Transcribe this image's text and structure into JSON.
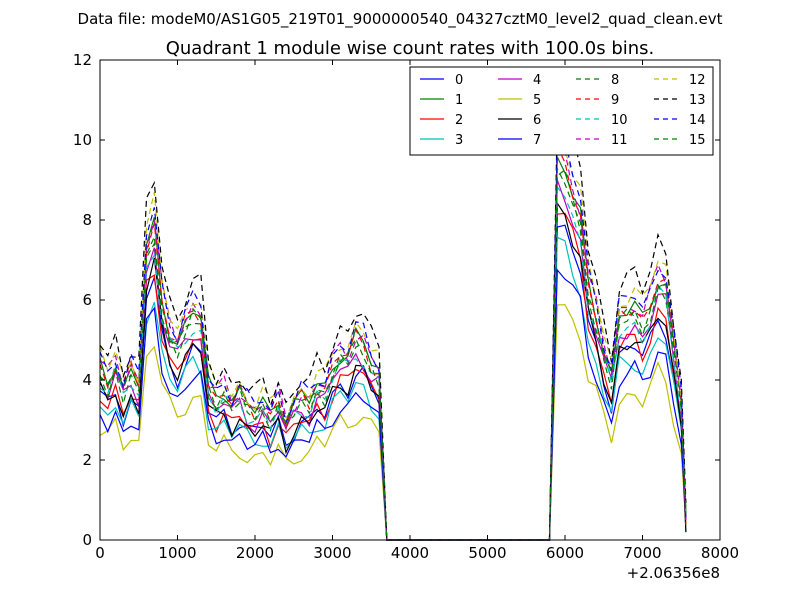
{
  "figure": {
    "suptitle": "Data file: modeM0/AS1G05_219T01_9000000540_04327cztM0_level2_quad_clean.evt"
  },
  "chart_data": {
    "type": "line",
    "title": "Quadrant 1 module wise count rates with 100.0s bins.",
    "xlabel": "",
    "ylabel": "",
    "x_offset_label": "+2.06356e8",
    "xlim": [
      0,
      8000
    ],
    "ylim": [
      0,
      12
    ],
    "xticks": [
      "0",
      "1000",
      "2000",
      "3000",
      "4000",
      "5000",
      "6000",
      "7000",
      "8000"
    ],
    "yticks": [
      "0",
      "2",
      "4",
      "6",
      "8",
      "10",
      "12"
    ],
    "grid": false,
    "legend": {
      "position": "top-right",
      "columns": 4
    },
    "x": [
      0,
      100,
      200,
      300,
      400,
      500,
      600,
      700,
      800,
      900,
      1000,
      1100,
      1200,
      1300,
      1400,
      1500,
      1600,
      1700,
      1800,
      1900,
      2000,
      2100,
      2200,
      2300,
      2400,
      2500,
      2600,
      2700,
      2800,
      2900,
      3000,
      3100,
      3200,
      3300,
      3400,
      3500,
      3600,
      3700,
      3800,
      3900,
      4000,
      4100,
      4200,
      4300,
      4400,
      4500,
      4600,
      4700,
      4800,
      4900,
      5000,
      5100,
      5200,
      5300,
      5400,
      5500,
      5600,
      5700,
      5800,
      5900,
      6000,
      6100,
      6200,
      6300,
      6400,
      6500,
      6600,
      6700,
      6800,
      6900,
      7000,
      7100,
      7200,
      7300,
      7400,
      7500,
      7560
    ],
    "base_profile": [
      3.8,
      3.5,
      3.9,
      3.3,
      3.7,
      3.4,
      6.4,
      6.9,
      5.3,
      4.6,
      4.3,
      4.7,
      5.0,
      4.9,
      3.4,
      3.1,
      3.3,
      3.0,
      3.2,
      2.9,
      2.8,
      3.0,
      2.7,
      3.1,
      2.6,
      2.9,
      3.1,
      3.0,
      3.4,
      3.3,
      3.8,
      4.1,
      4.0,
      4.4,
      4.3,
      3.9,
      3.7,
      0,
      0,
      0,
      0,
      0,
      0,
      0,
      0,
      0,
      0,
      0,
      0,
      0,
      0,
      0,
      0,
      0,
      0,
      0,
      0,
      0,
      0,
      8.4,
      8.2,
      7.6,
      7.1,
      5.6,
      5.0,
      4.2,
      3.6,
      4.9,
      5.0,
      5.1,
      4.8,
      5.2,
      5.8,
      5.6,
      4.3,
      3.0,
      0.5
    ],
    "series": [
      {
        "name": "0",
        "color": "#0000ff",
        "dash": "",
        "scale": 0.95,
        "shift": 0.0
      },
      {
        "name": "1",
        "color": "#008000",
        "dash": "",
        "scale": 1.12,
        "shift": 0.1
      },
      {
        "name": "2",
        "color": "#ff0000",
        "dash": "",
        "scale": 1.0,
        "shift": -0.1
      },
      {
        "name": "3",
        "color": "#00bfbf",
        "dash": "",
        "scale": 0.88,
        "shift": 0.0
      },
      {
        "name": "4",
        "color": "#bf00bf",
        "dash": "",
        "scale": 1.05,
        "shift": 0.0
      },
      {
        "name": "5",
        "color": "#bfbf00",
        "dash": "",
        "scale": 0.72,
        "shift": 0.0
      },
      {
        "name": "6",
        "color": "#000000",
        "dash": "",
        "scale": 1.02,
        "shift": -0.2
      },
      {
        "name": "7",
        "color": "#0000ff",
        "dash": "",
        "scale": 0.82,
        "shift": 0.0
      },
      {
        "name": "8",
        "color": "#008000",
        "dash": "6,4",
        "scale": 1.1,
        "shift": 0.0
      },
      {
        "name": "9",
        "color": "#ff0000",
        "dash": "6,4",
        "scale": 1.14,
        "shift": 0.0
      },
      {
        "name": "10",
        "color": "#00bfbf",
        "dash": "6,4",
        "scale": 1.04,
        "shift": 0.1
      },
      {
        "name": "11",
        "color": "#bf00bf",
        "dash": "6,4",
        "scale": 1.17,
        "shift": 0.0
      },
      {
        "name": "12",
        "color": "#bfbf00",
        "dash": "6,4",
        "scale": 1.22,
        "shift": 0.0
      },
      {
        "name": "13",
        "color": "#000000",
        "dash": "6,4",
        "scale": 1.3,
        "shift": 0.0
      },
      {
        "name": "14",
        "color": "#0000ff",
        "dash": "6,4",
        "scale": 1.2,
        "shift": 0.0
      },
      {
        "name": "15",
        "color": "#008000",
        "dash": "6,4",
        "scale": 1.08,
        "shift": 0.1
      }
    ]
  }
}
